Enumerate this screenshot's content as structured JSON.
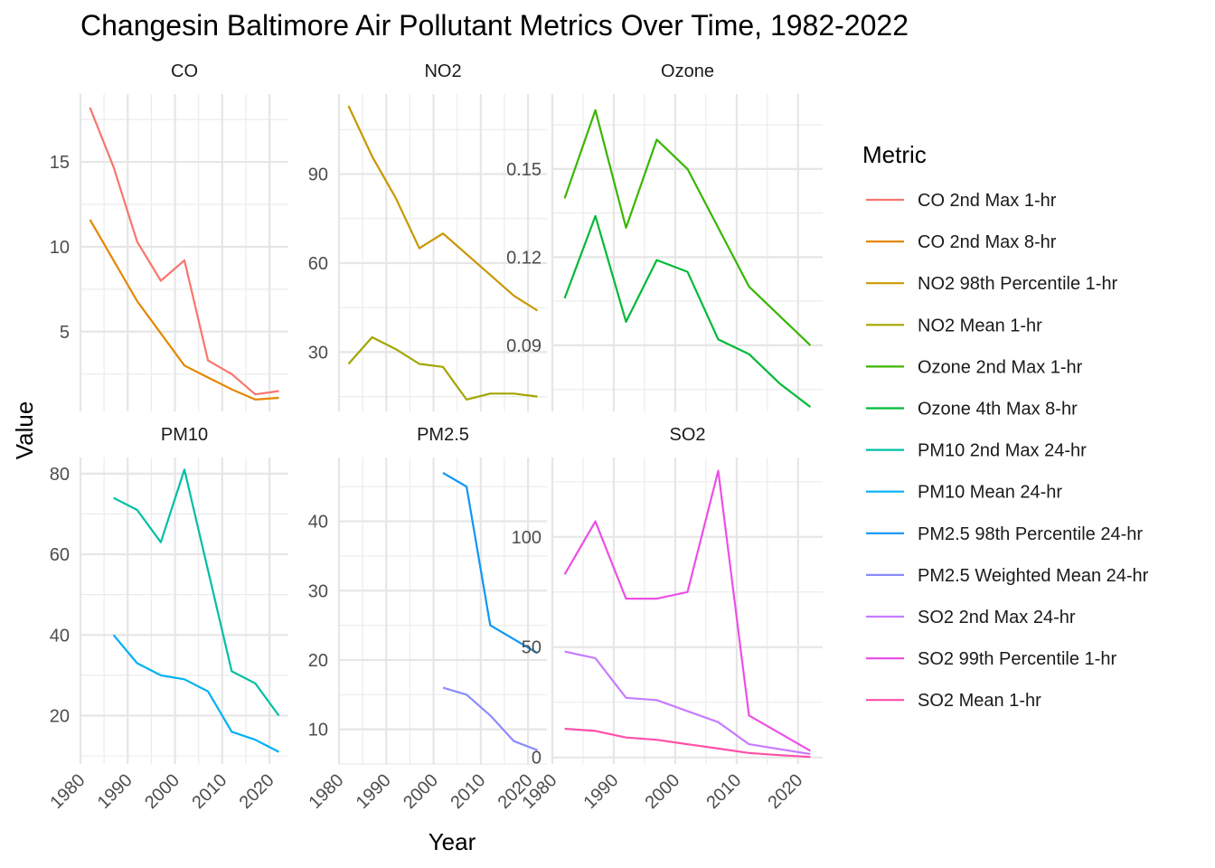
{
  "chart_data": {
    "type": "line",
    "title": "Changesin Baltimore Air Pollutant Metrics Over Time,  1982-2022",
    "xlabel": "Year",
    "ylabel": "Value",
    "legend": {
      "title": "Metric",
      "placement": "right"
    },
    "x_ticks": [
      1980,
      1990,
      2000,
      2010,
      2020
    ],
    "xlim": [
      1980,
      2024
    ],
    "grid": true,
    "metrics": [
      {
        "name": "CO 2nd Max 1-hr",
        "color": "#F8766D"
      },
      {
        "name": "CO 2nd Max 8-hr",
        "color": "#E58700"
      },
      {
        "name": "NO2 98th Percentile 1-hr",
        "color": "#C99800"
      },
      {
        "name": "NO2 Mean 1-hr",
        "color": "#A3A500"
      },
      {
        "name": "Ozone 2nd Max 1-hr",
        "color": "#39B600"
      },
      {
        "name": "Ozone 4th Max 8-hr",
        "color": "#00BA38"
      },
      {
        "name": "PM10 2nd Max 24-hr",
        "color": "#00BFA4"
      },
      {
        "name": "PM10 Mean 24-hr",
        "color": "#00B0F6"
      },
      {
        "name": "PM2.5 98th Percentile 24-hr",
        "color": "#0E96F5"
      },
      {
        "name": "PM2.5 Weighted Mean 24-hr",
        "color": "#8C8BFF"
      },
      {
        "name": "SO2 2nd Max 24-hr",
        "color": "#C77CFF"
      },
      {
        "name": "SO2 99th Percentile 1-hr",
        "color": "#EC4FE6"
      },
      {
        "name": "SO2 Mean 1-hr",
        "color": "#FF4FA8"
      }
    ],
    "panels": [
      {
        "name": "CO",
        "ylim": [
          0.3,
          19.0
        ],
        "y_ticks": [
          5,
          10,
          15
        ],
        "series": [
          {
            "name": "CO 2nd Max 1-hr",
            "x": [
              1982,
              1987,
              1992,
              1997,
              2002,
              2007,
              2012,
              2017,
              2022
            ],
            "values": [
              18.2,
              14.7,
              10.3,
              8.0,
              9.2,
              3.3,
              2.5,
              1.3,
              1.5
            ]
          },
          {
            "name": "CO 2nd Max 8-hr",
            "x": [
              1982,
              1987,
              1992,
              1997,
              2002,
              2007,
              2012,
              2017,
              2022
            ],
            "values": [
              11.6,
              9.2,
              6.8,
              4.9,
              3.0,
              2.3,
              1.6,
              1.0,
              1.1
            ]
          }
        ]
      },
      {
        "name": "NO2",
        "ylim": [
          10,
          117
        ],
        "y_ticks": [
          30,
          60,
          90
        ],
        "series": [
          {
            "name": "NO2 98th Percentile 1-hr",
            "x": [
              1982,
              1987,
              1992,
              1997,
              2002,
              2007,
              2012,
              2017,
              2022
            ],
            "values": [
              113,
              96,
              82,
              65,
              70,
              63,
              56,
              49,
              44
            ]
          },
          {
            "name": "NO2 Mean 1-hr",
            "x": [
              1982,
              1987,
              1992,
              1997,
              2002,
              2007,
              2012,
              2017,
              2022
            ],
            "values": [
              26,
              35,
              31,
              26,
              25,
              14,
              16,
              16,
              15
            ]
          }
        ]
      },
      {
        "name": "Ozone",
        "ylim": [
          0.0675,
          0.1755
        ],
        "y_ticks": [
          0.09,
          0.12,
          0.15
        ],
        "y_tick_labels": [
          "0.09",
          "0.12",
          "0.15"
        ],
        "series": [
          {
            "name": "Ozone 2nd Max 1-hr",
            "x": [
              1982,
              1987,
              1992,
              1997,
              2002,
              2007,
              2012,
              2017,
              2022
            ],
            "values": [
              0.14,
              0.17,
              0.13,
              0.16,
              0.15,
              0.13,
              0.11,
              0.1,
              0.09
            ]
          },
          {
            "name": "Ozone 4th Max 8-hr",
            "x": [
              1982,
              1987,
              1992,
              1997,
              2002,
              2007,
              2012,
              2017,
              2022
            ],
            "values": [
              0.106,
              0.134,
              0.098,
              0.119,
              0.115,
              0.092,
              0.087,
              0.077,
              0.069
            ]
          }
        ]
      },
      {
        "name": "PM10",
        "ylim": [
          8,
          84
        ],
        "y_ticks": [
          20,
          40,
          60,
          80
        ],
        "series": [
          {
            "name": "PM10 2nd Max 24-hr",
            "x": [
              1987,
              1992,
              1997,
              2002,
              2012,
              2017,
              2022
            ],
            "values": [
              74,
              71,
              63,
              81,
              31,
              28,
              20
            ]
          },
          {
            "name": "PM10 Mean 24-hr",
            "x": [
              1987,
              1992,
              1997,
              2002,
              2007,
              2012,
              2017,
              2022
            ],
            "values": [
              40,
              33,
              30,
              29,
              26,
              16,
              14,
              11
            ]
          }
        ]
      },
      {
        "name": "PM2.5",
        "ylim": [
          5.0,
          49.2
        ],
        "y_ticks": [
          10,
          20,
          30,
          40
        ],
        "series": [
          {
            "name": "PM2.5 98th Percentile 24-hr",
            "x": [
              2002,
              2007,
              2012,
              2022
            ],
            "values": [
              47,
              45,
              25,
              21
            ]
          },
          {
            "name": "PM2.5 Weighted Mean 24-hr",
            "x": [
              2002,
              2007,
              2012,
              2017,
              2022
            ],
            "values": [
              16,
              15,
              12,
              8.3,
              7
            ]
          }
        ]
      },
      {
        "name": "SO2",
        "ylim": [
          -3,
          136
        ],
        "y_ticks": [
          0,
          50,
          100
        ],
        "series": [
          {
            "name": "SO2 2nd Max 24-hr",
            "x": [
              1982,
              1987,
              1992,
              1997,
              2007,
              2012,
              2022
            ],
            "values": [
              48,
              45,
              27,
              26,
              16,
              6,
              1.5
            ]
          },
          {
            "name": "SO2 99th Percentile 1-hr",
            "x": [
              1982,
              1987,
              1992,
              1997,
              2002,
              2007,
              2012,
              2022
            ],
            "values": [
              83,
              107,
              72,
              72,
              75,
              130,
              19,
              3
            ]
          },
          {
            "name": "SO2 Mean 1-hr",
            "x": [
              1982,
              1987,
              1992,
              1997,
              2002,
              2007,
              2012,
              2017,
              2022
            ],
            "values": [
              13,
              12,
              9,
              8,
              6,
              4,
              2,
              1,
              0.2
            ]
          }
        ]
      }
    ]
  }
}
